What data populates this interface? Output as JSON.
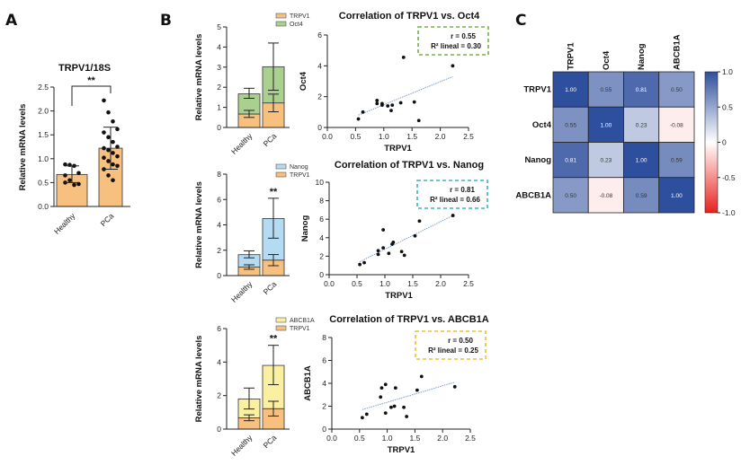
{
  "panel_labels": {
    "a": "A",
    "b": "B",
    "c": "C"
  },
  "colors": {
    "trpv1": "#f8c07e",
    "oct4": "#a9d08e",
    "nanog": "#b5dbf2",
    "abcb1a": "#fbf0a2",
    "heat_pos": "#2e4f9e",
    "heat_neg": "#e8211e",
    "fit_line": "#7f9cc6",
    "box_oct4": "#78b04a",
    "box_nanog": "#3bb3c8",
    "box_abcb1a": "#f0c030"
  },
  "chart_data": [
    {
      "id": "A",
      "type": "bar",
      "title": "TRPV1/18S",
      "ylabel": "Relative mRNA levels",
      "categories": [
        "Healthy",
        "PCa"
      ],
      "values": [
        0.67,
        1.22
      ],
      "error": [
        [
          0.5,
          0.85
        ],
        [
          0.78,
          1.66
        ]
      ],
      "points": [
        [
          0.88,
          0.87,
          0.85,
          0.7,
          0.65,
          0.55,
          0.45,
          0.47,
          0.5
        ],
        [
          2.22,
          1.97,
          1.78,
          1.62,
          1.55,
          1.45,
          1.35,
          1.25,
          1.22,
          1.18,
          1.12,
          1.05,
          1.02,
          0.95,
          0.88,
          0.85,
          0.78,
          0.65,
          0.55
        ]
      ],
      "ylim": [
        0,
        2.5
      ],
      "yticks": [
        "0.0",
        "0.5",
        "1.0",
        "1.5",
        "2.0",
        "2.5"
      ],
      "significance": "**"
    },
    {
      "id": "B1-bar",
      "type": "bar",
      "stacked": true,
      "ylabel": "Relative mRNA levels",
      "categories": [
        "Healthy",
        "PCa"
      ],
      "series": [
        {
          "name": "TRPV1",
          "values": [
            0.67,
            1.22
          ],
          "error": [
            [
              0.5,
              0.85
            ],
            [
              0.78,
              1.66
            ]
          ]
        },
        {
          "name": "Oct4",
          "values": [
            1.0,
            1.8
          ],
          "error": [
            [
              1.45,
              1.95
            ],
            [
              1.85,
              4.2
            ]
          ]
        }
      ],
      "legend_order": [
        "TRPV1",
        "Oct4"
      ],
      "ylim": [
        0,
        5
      ],
      "yticks": [
        "0",
        "1",
        "2",
        "3",
        "4",
        "5"
      ],
      "significance": ""
    },
    {
      "id": "B1-scatter",
      "type": "scatter",
      "title": "Correlation of TRPV1 vs. Oct4",
      "xlabel": "TRPV1",
      "ylabel": "Oct4",
      "xlim": [
        0,
        2.5
      ],
      "ylim": [
        0,
        6
      ],
      "xticks": [
        "0.0",
        "0.5",
        "1.0",
        "1.5",
        "2.0",
        "2.5"
      ],
      "yticks": [
        "0",
        "2",
        "4",
        "6"
      ],
      "points": [
        [
          0.55,
          0.55
        ],
        [
          0.63,
          1.0
        ],
        [
          0.88,
          1.55
        ],
        [
          0.88,
          1.75
        ],
        [
          0.97,
          1.45
        ],
        [
          0.97,
          1.55
        ],
        [
          1.07,
          1.4
        ],
        [
          1.13,
          1.1
        ],
        [
          1.15,
          1.45
        ],
        [
          1.3,
          1.6
        ],
        [
          1.35,
          4.55
        ],
        [
          1.54,
          1.65
        ],
        [
          1.62,
          0.45
        ],
        [
          2.22,
          4.0
        ]
      ],
      "fit": [
        [
          0.55,
          0.8
        ],
        [
          2.22,
          3.3
        ]
      ],
      "stats": [
        "r = 0.55",
        "R² lineal = 0.30"
      ]
    },
    {
      "id": "B2-bar",
      "type": "bar",
      "stacked": true,
      "ylabel": "Relative mRNA levels",
      "categories": [
        "Healthy",
        "PCa"
      ],
      "series": [
        {
          "name": "TRPV1",
          "values": [
            0.67,
            1.22
          ],
          "error": [
            [
              0.5,
              0.85
            ],
            [
              0.78,
              1.66
            ]
          ]
        },
        {
          "name": "Nanog",
          "values": [
            0.98,
            3.28
          ],
          "error": [
            [
              1.4,
              1.95
            ],
            [
              2.95,
              6.1
            ]
          ]
        }
      ],
      "legend_order": [
        "Nanog",
        "TRPV1"
      ],
      "ylim": [
        0,
        8
      ],
      "yticks": [
        "0",
        "2",
        "4",
        "6",
        "8"
      ],
      "significance": "**"
    },
    {
      "id": "B2-scatter",
      "type": "scatter",
      "title": "Correlation of TRPV1 vs. Nanog",
      "xlabel": "TRPV1",
      "ylabel": "Nanog",
      "xlim": [
        0,
        2.5
      ],
      "ylim": [
        0,
        10
      ],
      "xticks": [
        "0.0",
        "0.5",
        "1.0",
        "1.5",
        "2.0",
        "2.5"
      ],
      "yticks": [
        "0",
        "2",
        "4",
        "6",
        "8",
        "10"
      ],
      "points": [
        [
          0.55,
          1.1
        ],
        [
          0.63,
          1.3
        ],
        [
          0.88,
          2.2
        ],
        [
          0.88,
          2.6
        ],
        [
          0.97,
          4.85
        ],
        [
          0.97,
          2.9
        ],
        [
          1.07,
          2.3
        ],
        [
          1.13,
          3.3
        ],
        [
          1.15,
          3.5
        ],
        [
          1.3,
          2.5
        ],
        [
          1.35,
          2.1
        ],
        [
          1.54,
          4.2
        ],
        [
          1.62,
          5.8
        ],
        [
          2.22,
          6.4
        ]
      ],
      "fit": [
        [
          0.55,
          1.4
        ],
        [
          2.22,
          6.4
        ]
      ],
      "stats": [
        "r = 0.81",
        "R² lineal = 0.66"
      ]
    },
    {
      "id": "B3-bar",
      "type": "bar",
      "stacked": true,
      "ylabel": "Relative mRNA levels",
      "categories": [
        "Healthy",
        "PCa"
      ],
      "series": [
        {
          "name": "TRPV1",
          "values": [
            0.67,
            1.22
          ],
          "error": [
            [
              0.5,
              0.85
            ],
            [
              0.78,
              1.66
            ]
          ]
        },
        {
          "name": "ABCB1A",
          "values": [
            1.13,
            2.58
          ],
          "error": [
            [
              1.2,
              2.45
            ],
            [
              2.65,
              5.0
            ]
          ]
        }
      ],
      "legend_order": [
        "ABCB1A",
        "TRPV1"
      ],
      "ylim": [
        0,
        6
      ],
      "yticks": [
        "0",
        "2",
        "4",
        "6"
      ],
      "significance": "**"
    },
    {
      "id": "B3-scatter",
      "type": "scatter",
      "title": "Correlation of TRPV1 vs. ABCB1A",
      "xlabel": "TRPV1",
      "ylabel": "ABCB1A",
      "xlim": [
        0,
        2.5
      ],
      "ylim": [
        0,
        8
      ],
      "xticks": [
        "0.0",
        "0.5",
        "1.0",
        "1.5",
        "2.0",
        "2.5"
      ],
      "yticks": [
        "0",
        "2",
        "4",
        "6",
        "8"
      ],
      "points": [
        [
          0.55,
          1.0
        ],
        [
          0.63,
          1.3
        ],
        [
          0.88,
          2.8
        ],
        [
          0.9,
          3.6
        ],
        [
          0.97,
          3.9
        ],
        [
          0.97,
          1.4
        ],
        [
          1.07,
          1.9
        ],
        [
          1.13,
          2.0
        ],
        [
          1.15,
          3.6
        ],
        [
          1.3,
          1.9
        ],
        [
          1.35,
          1.1
        ],
        [
          1.54,
          3.4
        ],
        [
          1.62,
          4.6
        ],
        [
          2.22,
          3.7
        ]
      ],
      "fit": [
        [
          0.55,
          1.7
        ],
        [
          2.22,
          4.1
        ]
      ],
      "stats": [
        "r = 0.50",
        "R² lineal = 0.25"
      ]
    },
    {
      "id": "C",
      "type": "heatmap",
      "labels": [
        "TRPV1",
        "Oct4",
        "Nanog",
        "ABCB1A"
      ],
      "matrix": [
        [
          1.0,
          0.55,
          0.81,
          0.5
        ],
        [
          0.55,
          1.0,
          0.23,
          -0.08
        ],
        [
          0.81,
          0.23,
          1.0,
          0.59
        ],
        [
          0.5,
          -0.08,
          0.59,
          1.0
        ]
      ],
      "cell_text": [
        [
          "1.00",
          "0.55",
          "0.81",
          "0.50"
        ],
        [
          "0.55",
          "1.00",
          "0.23",
          "-0.08"
        ],
        [
          "0.81",
          "0.23",
          "1.00",
          "0.59"
        ],
        [
          "0.50",
          "-0.08",
          "0.59",
          "1.00"
        ]
      ],
      "colorbar_range": [
        -1,
        1
      ],
      "colorbar_ticks": [
        "1.0",
        "0.5",
        "0",
        "-0.5",
        "-1.0"
      ]
    }
  ]
}
